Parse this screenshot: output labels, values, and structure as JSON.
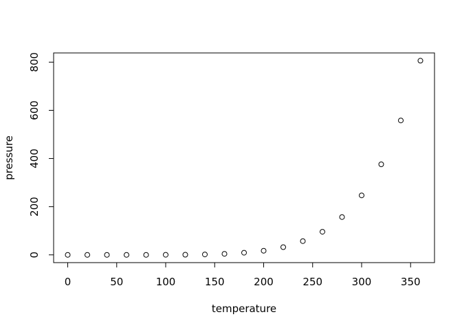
{
  "chart_data": {
    "type": "scatter",
    "title": "",
    "xlabel": "temperature",
    "ylabel": "pressure",
    "x": [
      0,
      20,
      40,
      60,
      80,
      100,
      120,
      140,
      160,
      180,
      200,
      220,
      240,
      260,
      280,
      300,
      320,
      340,
      360
    ],
    "y": [
      0.0002,
      0.0012,
      0.006,
      0.03,
      0.09,
      0.27,
      0.75,
      1.85,
      4.2,
      8.8,
      17.3,
      32.1,
      57.0,
      96.0,
      157.0,
      247.0,
      376.0,
      558.0,
      806.0
    ],
    "x_ticks": [
      0,
      50,
      100,
      150,
      200,
      250,
      300,
      350
    ],
    "y_ticks": [
      0,
      200,
      400,
      600,
      800
    ],
    "xlim": [
      -14.4,
      374.4
    ],
    "ylim": [
      -32.2,
      838.2
    ],
    "grid": false,
    "legend": null,
    "point_shape": "open-circle",
    "colors": {
      "background": "#ffffff",
      "axis": "#000000",
      "point_stroke": "#000000",
      "text": "#000000"
    }
  }
}
